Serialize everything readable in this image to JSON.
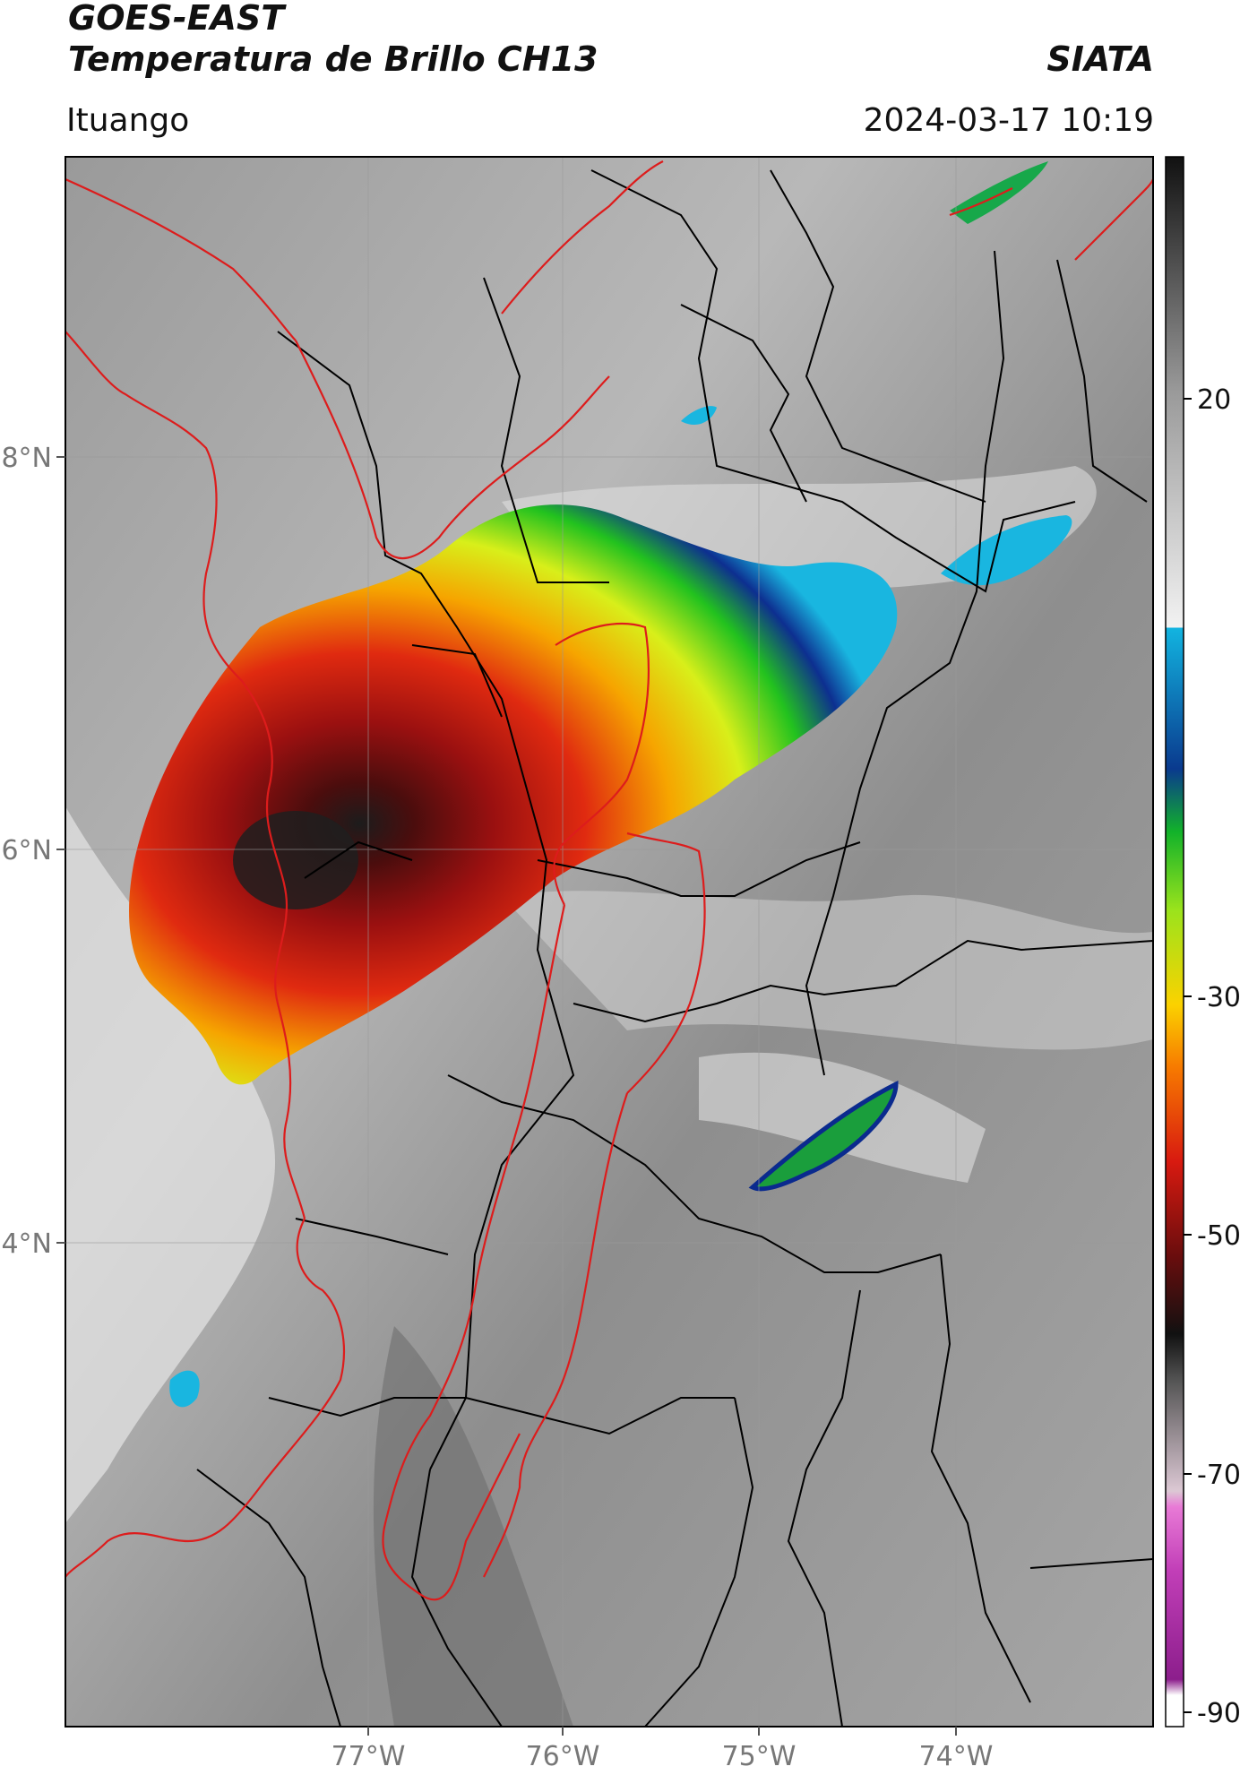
{
  "header": {
    "satellite": "GOES-EAST",
    "product": "Temperatura de Brillo CH13",
    "agency": "SIATA",
    "region": "Ituango",
    "datetime": "2024-03-17 10:19"
  },
  "map": {
    "lon_range": [
      -78.55,
      -73.05
    ],
    "lat_range": [
      2.15,
      9.55
    ],
    "lat_ticks": [
      {
        "value": 8,
        "label": "8°N"
      },
      {
        "value": 6,
        "label": "6°N"
      },
      {
        "value": 4,
        "label": "4°N"
      }
    ],
    "lon_ticks": [
      {
        "value": -77,
        "label": "77°W"
      },
      {
        "value": -76,
        "label": "76°W"
      },
      {
        "value": -75,
        "label": "75°W"
      },
      {
        "value": -74,
        "label": "74°W"
      }
    ],
    "colors": {
      "national_border": "#dd1c1c",
      "department_border": "#000000",
      "gridline": "#9a9a9a"
    }
  },
  "colorbar": {
    "range": [
      -90,
      40
    ],
    "ticks": [
      {
        "value": 20,
        "label": "20"
      },
      {
        "value": -30,
        "label": "-30"
      },
      {
        "value": -50,
        "label": "-50"
      },
      {
        "value": -70,
        "label": "-70"
      },
      {
        "value": -90,
        "label": "-90"
      }
    ]
  }
}
